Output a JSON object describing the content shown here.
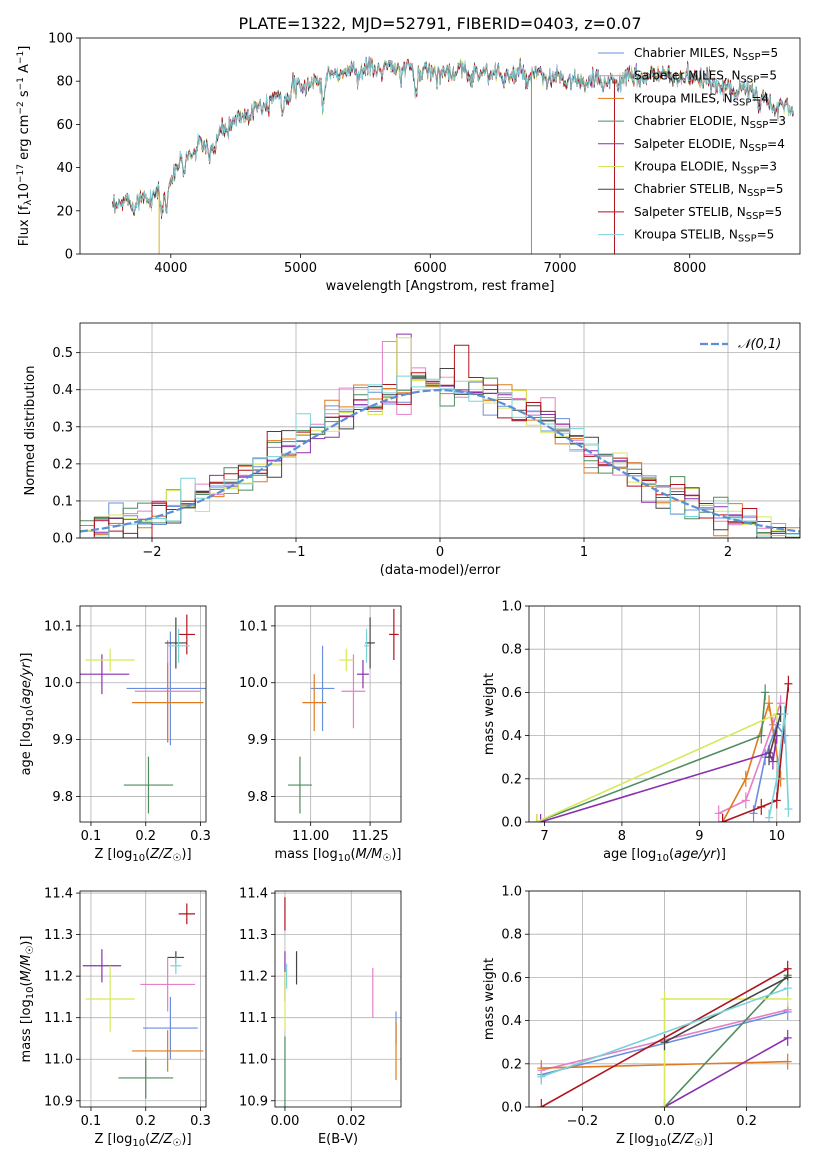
{
  "figure": {
    "title": "PLATE=1322, MJD=52791, FIBERID=0403, z=0.07"
  },
  "models": [
    {
      "name": "Chabrier MILES",
      "nssp": 5,
      "color": "#6a8fdc"
    },
    {
      "name": "Salpeter MILES",
      "nssp": 5,
      "color": "#e47fc8"
    },
    {
      "name": "Kroupa MILES",
      "nssp": 4,
      "color": "#e07a1f"
    },
    {
      "name": "Chabrier ELODIE",
      "nssp": 3,
      "color": "#4f8c5f"
    },
    {
      "name": "Salpeter ELODIE",
      "nssp": 4,
      "color": "#8b2fb0"
    },
    {
      "name": "Kroupa ELODIE",
      "nssp": 3,
      "color": "#d8e85a"
    },
    {
      "name": "Chabrier STELIB",
      "nssp": 5,
      "color": "#444444"
    },
    {
      "name": "Salpeter STELIB",
      "nssp": 5,
      "color": "#b0141e"
    },
    {
      "name": "Kroupa STELIB",
      "nssp": 5,
      "color": "#79d3d8"
    }
  ],
  "chart_data": [
    {
      "id": "spectrum",
      "type": "line",
      "xlabel": "wavelength [Angstrom, rest frame]",
      "ylabel": "Flux [f",
      "ylabel_full": "Flux [fλ10^-17 erg cm^-2 s^-1 A^-1]",
      "xlim": [
        3300,
        8850
      ],
      "ylim": [
        0,
        100
      ],
      "xticks": [
        4000,
        5000,
        6000,
        7000,
        8000
      ],
      "yticks": [
        0,
        20,
        40,
        60,
        80,
        100
      ],
      "continuum": {
        "x": [
          3550,
          3800,
          3950,
          4100,
          4300,
          4500,
          4800,
          5000,
          5300,
          5600,
          5900,
          6200,
          6500,
          6800,
          7000,
          7200,
          7500,
          7800,
          8100,
          8400,
          8600,
          8800
        ],
        "y": [
          22,
          26,
          30,
          45,
          52,
          62,
          73,
          77,
          84,
          86,
          85,
          84,
          84,
          82,
          81,
          79,
          81,
          83,
          80,
          76,
          72,
          66
        ]
      },
      "spikes": [
        {
          "x": 3910,
          "ymin": 0
        },
        {
          "x": 6780,
          "ymin": 0
        },
        {
          "x": 7420,
          "ymin": 0
        }
      ],
      "grid": false,
      "legend": "upper-right"
    },
    {
      "id": "residuals",
      "type": "histogram",
      "xlabel": "(data-model)/error",
      "ylabel": "Normed distribution",
      "xlim": [
        -2.5,
        2.5
      ],
      "ylim": [
        0,
        0.58
      ],
      "xticks": [
        -2,
        -1,
        0,
        1,
        2
      ],
      "yticks": [
        0.0,
        0.1,
        0.2,
        0.3,
        0.4,
        0.5
      ],
      "bin_width": 0.1,
      "reference": {
        "label": "𝒩(0,1)",
        "mean": 0,
        "sigma": 1,
        "color": "#5a8fd8"
      },
      "spike_bins": [
        {
          "x": -0.25,
          "y": 0.55,
          "series": 4
        },
        {
          "x": -0.25,
          "y": 0.54,
          "series": 5
        },
        {
          "x": 0.15,
          "y": 0.52,
          "series": 7
        },
        {
          "x": -0.35,
          "y": 0.53,
          "series": 1
        }
      ],
      "grid": true,
      "legend": "upper-right"
    },
    {
      "id": "age-vs-Z",
      "type": "errorbar",
      "xlabel": "Z [log10(Z/Z☉)]",
      "ylabel": "age  [log10(age/yr)]",
      "xlim": [
        0.08,
        0.31
      ],
      "ylim": [
        9.755,
        10.135
      ],
      "xticks": [
        0.1,
        0.2,
        0.3
      ],
      "yticks": [
        9.8,
        9.9,
        10.0,
        10.1
      ],
      "points": [
        {
          "x": 0.245,
          "y": 9.99,
          "xerr": 0.08,
          "yerr": 0.1,
          "series": 0
        },
        {
          "x": 0.24,
          "y": 9.985,
          "xerr": 0.06,
          "yerr": 0.09,
          "series": 1
        },
        {
          "x": 0.24,
          "y": 9.965,
          "xerr": 0.065,
          "yerr": 0.07,
          "series": 2
        },
        {
          "x": 0.205,
          "y": 9.82,
          "xerr": 0.045,
          "yerr": 0.05,
          "series": 3
        },
        {
          "x": 0.12,
          "y": 10.015,
          "xerr": 0.05,
          "yerr": 0.035,
          "series": 4
        },
        {
          "x": 0.135,
          "y": 10.04,
          "xerr": 0.045,
          "yerr": 0.02,
          "series": 5
        },
        {
          "x": 0.255,
          "y": 10.07,
          "xerr": 0.02,
          "yerr": 0.045,
          "series": 6
        },
        {
          "x": 0.275,
          "y": 10.085,
          "xerr": 0.015,
          "yerr": 0.035,
          "series": 7
        },
        {
          "x": 0.26,
          "y": 10.065,
          "xerr": 0.02,
          "yerr": 0.03,
          "series": 8
        }
      ],
      "grid": true
    },
    {
      "id": "age-vs-mass",
      "type": "errorbar",
      "xlabel": "mass [log10(M/M☉)]",
      "ylabel": "",
      "xlim": [
        10.85,
        11.38
      ],
      "ylim": [
        9.755,
        10.135
      ],
      "xticks": [
        11.0,
        11.25
      ],
      "xticklabels": [
        "11.00",
        "11.25"
      ],
      "yticks": [
        9.8,
        9.9,
        10.0,
        10.1
      ],
      "points": [
        {
          "x": 11.05,
          "y": 9.99,
          "xerr": 0.05,
          "yerr": 0.075,
          "series": 0
        },
        {
          "x": 11.18,
          "y": 9.985,
          "xerr": 0.05,
          "yerr": 0.065,
          "series": 1
        },
        {
          "x": 11.015,
          "y": 9.965,
          "xerr": 0.05,
          "yerr": 0.05,
          "series": 2
        },
        {
          "x": 10.955,
          "y": 9.82,
          "xerr": 0.05,
          "yerr": 0.05,
          "series": 3
        },
        {
          "x": 11.22,
          "y": 10.015,
          "xerr": 0.025,
          "yerr": 0.025,
          "series": 4
        },
        {
          "x": 11.15,
          "y": 10.04,
          "xerr": 0.03,
          "yerr": 0.02,
          "series": 5
        },
        {
          "x": 11.25,
          "y": 10.07,
          "xerr": 0.02,
          "yerr": 0.045,
          "series": 6
        },
        {
          "x": 11.35,
          "y": 10.085,
          "xerr": 0.02,
          "yerr": 0.045,
          "series": 7
        },
        {
          "x": 11.235,
          "y": 10.065,
          "xerr": 0.01,
          "yerr": 0.03,
          "series": 8
        }
      ],
      "grid": true
    },
    {
      "id": "massweight-vs-age",
      "type": "line",
      "xlabel": "age  [log10(age/yr)]",
      "ylabel": "mass weight",
      "xlim": [
        6.8,
        10.3
      ],
      "ylim": [
        0,
        1.0
      ],
      "xticks": [
        7,
        8,
        9,
        10
      ],
      "yticks": [
        0.0,
        0.2,
        0.4,
        0.6,
        0.8,
        1.0
      ],
      "series": [
        {
          "series": 0,
          "x": [
            9.7,
            9.85,
            10.0,
            10.1
          ],
          "y": [
            0.04,
            0.3,
            0.45,
            0.4
          ]
        },
        {
          "series": 1,
          "x": [
            9.25,
            9.6,
            9.95,
            10.05
          ],
          "y": [
            0.04,
            0.1,
            0.45,
            0.55
          ]
        },
        {
          "series": 2,
          "x": [
            9.3,
            9.6,
            9.9,
            10.05
          ],
          "y": [
            0.0,
            0.2,
            0.55,
            0.2
          ]
        },
        {
          "series": 3,
          "x": [
            6.9,
            9.8,
            9.85
          ],
          "y": [
            0.0,
            0.4,
            0.6
          ]
        },
        {
          "series": 4,
          "x": [
            6.95,
            9.9,
            9.95,
            10.0
          ],
          "y": [
            0.0,
            0.32,
            0.28,
            0.4
          ]
        },
        {
          "series": 5,
          "x": [
            6.9,
            10.0
          ],
          "y": [
            0.0,
            0.5
          ]
        },
        {
          "series": 6,
          "x": [
            9.9,
            10.05
          ],
          "y": [
            0.3,
            0.5
          ]
        },
        {
          "series": 7,
          "x": [
            9.3,
            9.8,
            10.0,
            10.15
          ],
          "y": [
            0.0,
            0.07,
            0.1,
            0.64
          ]
        },
        {
          "series": 8,
          "x": [
            9.9,
            10.0,
            10.1,
            10.15
          ],
          "y": [
            0.02,
            0.2,
            0.5,
            0.06
          ]
        }
      ],
      "grid": true
    },
    {
      "id": "mass-vs-Z",
      "type": "errorbar",
      "xlabel": "Z [log10(Z/Z☉)]",
      "ylabel": "mass [log10(M/M☉)]",
      "xlim": [
        0.08,
        0.31
      ],
      "ylim": [
        10.885,
        11.405
      ],
      "xticks": [
        0.1,
        0.2,
        0.3
      ],
      "yticks": [
        10.9,
        11.0,
        11.1,
        11.2,
        11.3,
        11.4
      ],
      "points": [
        {
          "x": 0.245,
          "y": 11.075,
          "xerr": 0.05,
          "yerr": 0.075,
          "series": 0
        },
        {
          "x": 0.24,
          "y": 11.18,
          "xerr": 0.05,
          "yerr": 0.065,
          "series": 1
        },
        {
          "x": 0.24,
          "y": 11.02,
          "xerr": 0.065,
          "yerr": 0.05,
          "series": 2
        },
        {
          "x": 0.2,
          "y": 10.955,
          "xerr": 0.05,
          "yerr": 0.05,
          "series": 3
        },
        {
          "x": 0.12,
          "y": 11.225,
          "xerr": 0.035,
          "yerr": 0.04,
          "series": 4
        },
        {
          "x": 0.135,
          "y": 11.145,
          "xerr": 0.045,
          "yerr": 0.08,
          "series": 5
        },
        {
          "x": 0.255,
          "y": 11.245,
          "xerr": 0.015,
          "yerr": 0.015,
          "series": 6
        },
        {
          "x": 0.275,
          "y": 11.35,
          "xerr": 0.015,
          "yerr": 0.025,
          "series": 7
        },
        {
          "x": 0.255,
          "y": 11.225,
          "xerr": 0.01,
          "yerr": 0.02,
          "series": 8
        }
      ],
      "grid": true
    },
    {
      "id": "mass-vs-ebv",
      "type": "errorbar",
      "xlabel": "E(B-V)",
      "ylabel": "",
      "xlim": [
        -0.003,
        0.035
      ],
      "ylim": [
        10.885,
        11.405
      ],
      "xticks": [
        0.0,
        0.02
      ],
      "xticklabels": [
        "0.00",
        "0.02"
      ],
      "yticks": [
        10.9,
        11.0,
        11.1,
        11.2,
        11.3,
        11.4
      ],
      "points": [
        {
          "x": 0.0335,
          "y": 11.075,
          "yerr": 0.04,
          "series": 0
        },
        {
          "x": 0.0265,
          "y": 11.16,
          "yerr": 0.06,
          "series": 1
        },
        {
          "x": 0.0335,
          "y": 11.02,
          "yerr": 0.07,
          "series": 2
        },
        {
          "x": 0.0,
          "y": 10.955,
          "yerr": 0.1,
          "series": 3
        },
        {
          "x": 0.0,
          "y": 11.2,
          "yerr": 0.06,
          "series": 4
        },
        {
          "x": 0.0,
          "y": 11.14,
          "yerr": 0.07,
          "series": 5
        },
        {
          "x": 0.0035,
          "y": 11.22,
          "yerr": 0.04,
          "series": 6
        },
        {
          "x": 0.0,
          "y": 11.35,
          "yerr": 0.04,
          "series": 7
        },
        {
          "x": 0.0005,
          "y": 11.2,
          "yerr": 0.03,
          "series": 8
        }
      ],
      "grid": true
    },
    {
      "id": "massweight-vs-Z",
      "type": "line",
      "xlabel": "Z [log10(Z/Z☉)]",
      "ylabel": "mass weight",
      "xlim": [
        -0.33,
        0.33
      ],
      "ylim": [
        0,
        1.0
      ],
      "xticks": [
        -0.2,
        0.0,
        0.2
      ],
      "xticklabels": [
        "−0.2",
        "0.0",
        "0.2"
      ],
      "yticks": [
        0.0,
        0.2,
        0.4,
        0.6,
        0.8,
        1.0
      ],
      "series": [
        {
          "series": 0,
          "x": [
            -0.3,
            0.3
          ],
          "y": [
            0.15,
            0.44
          ]
        },
        {
          "series": 1,
          "x": [
            -0.3,
            0.3
          ],
          "y": [
            0.17,
            0.45
          ]
        },
        {
          "series": 2,
          "x": [
            -0.3,
            0.3
          ],
          "y": [
            0.18,
            0.21
          ]
        },
        {
          "series": 3,
          "x": [
            0.0,
            0.3
          ],
          "y": [
            0.0,
            0.61
          ]
        },
        {
          "series": 4,
          "x": [
            0.0,
            0.3
          ],
          "y": [
            0.0,
            0.32
          ]
        },
        {
          "series": 5,
          "x": [
            0.0,
            0.0,
            0.3
          ],
          "y": [
            0.0,
            0.5,
            0.5
          ]
        },
        {
          "series": 6,
          "x": [
            0.0,
            0.3
          ],
          "y": [
            0.3,
            0.6
          ]
        },
        {
          "series": 7,
          "x": [
            -0.3,
            0.3
          ],
          "y": [
            0.0,
            0.64
          ]
        },
        {
          "series": 8,
          "x": [
            -0.3,
            0.3
          ],
          "y": [
            0.14,
            0.55
          ]
        }
      ],
      "grid": true
    }
  ]
}
